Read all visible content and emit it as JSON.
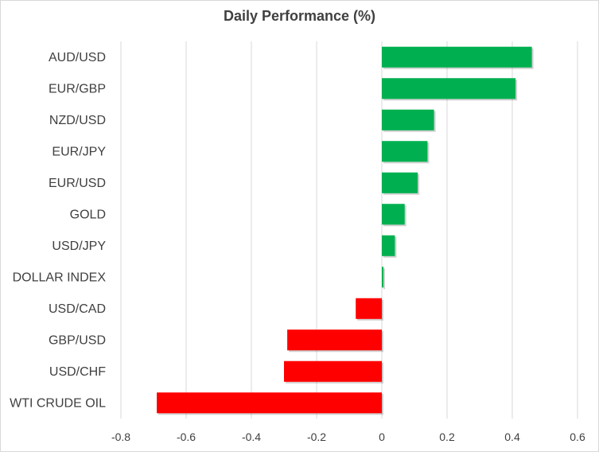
{
  "chart_data": {
    "type": "bar",
    "orientation": "horizontal",
    "title": "Daily Performance (%)",
    "xlabel": "",
    "ylabel": "",
    "categories": [
      "AUD/USD",
      "EUR/GBP",
      "NZD/USD",
      "EUR/JPY",
      "EUR/USD",
      "GOLD",
      "USD/JPY",
      "DOLLAR INDEX",
      "USD/CAD",
      "GBP/USD",
      "USD/CHF",
      "WTI CRUDE OIL"
    ],
    "values": [
      0.46,
      0.41,
      0.16,
      0.14,
      0.11,
      0.07,
      0.04,
      0.005,
      -0.08,
      -0.29,
      -0.3,
      -0.69
    ],
    "xlim": [
      -0.8,
      0.6
    ],
    "xticks": [
      "-0.8",
      "-0.6",
      "-0.4",
      "-0.2",
      "0",
      "0.2",
      "0.4",
      "0.6"
    ],
    "grid": "vertical",
    "legend": "none",
    "colors": {
      "positive": "#00b050",
      "negative": "#ff0000",
      "grid": "#d9d9d9",
      "text": "#404040"
    }
  }
}
